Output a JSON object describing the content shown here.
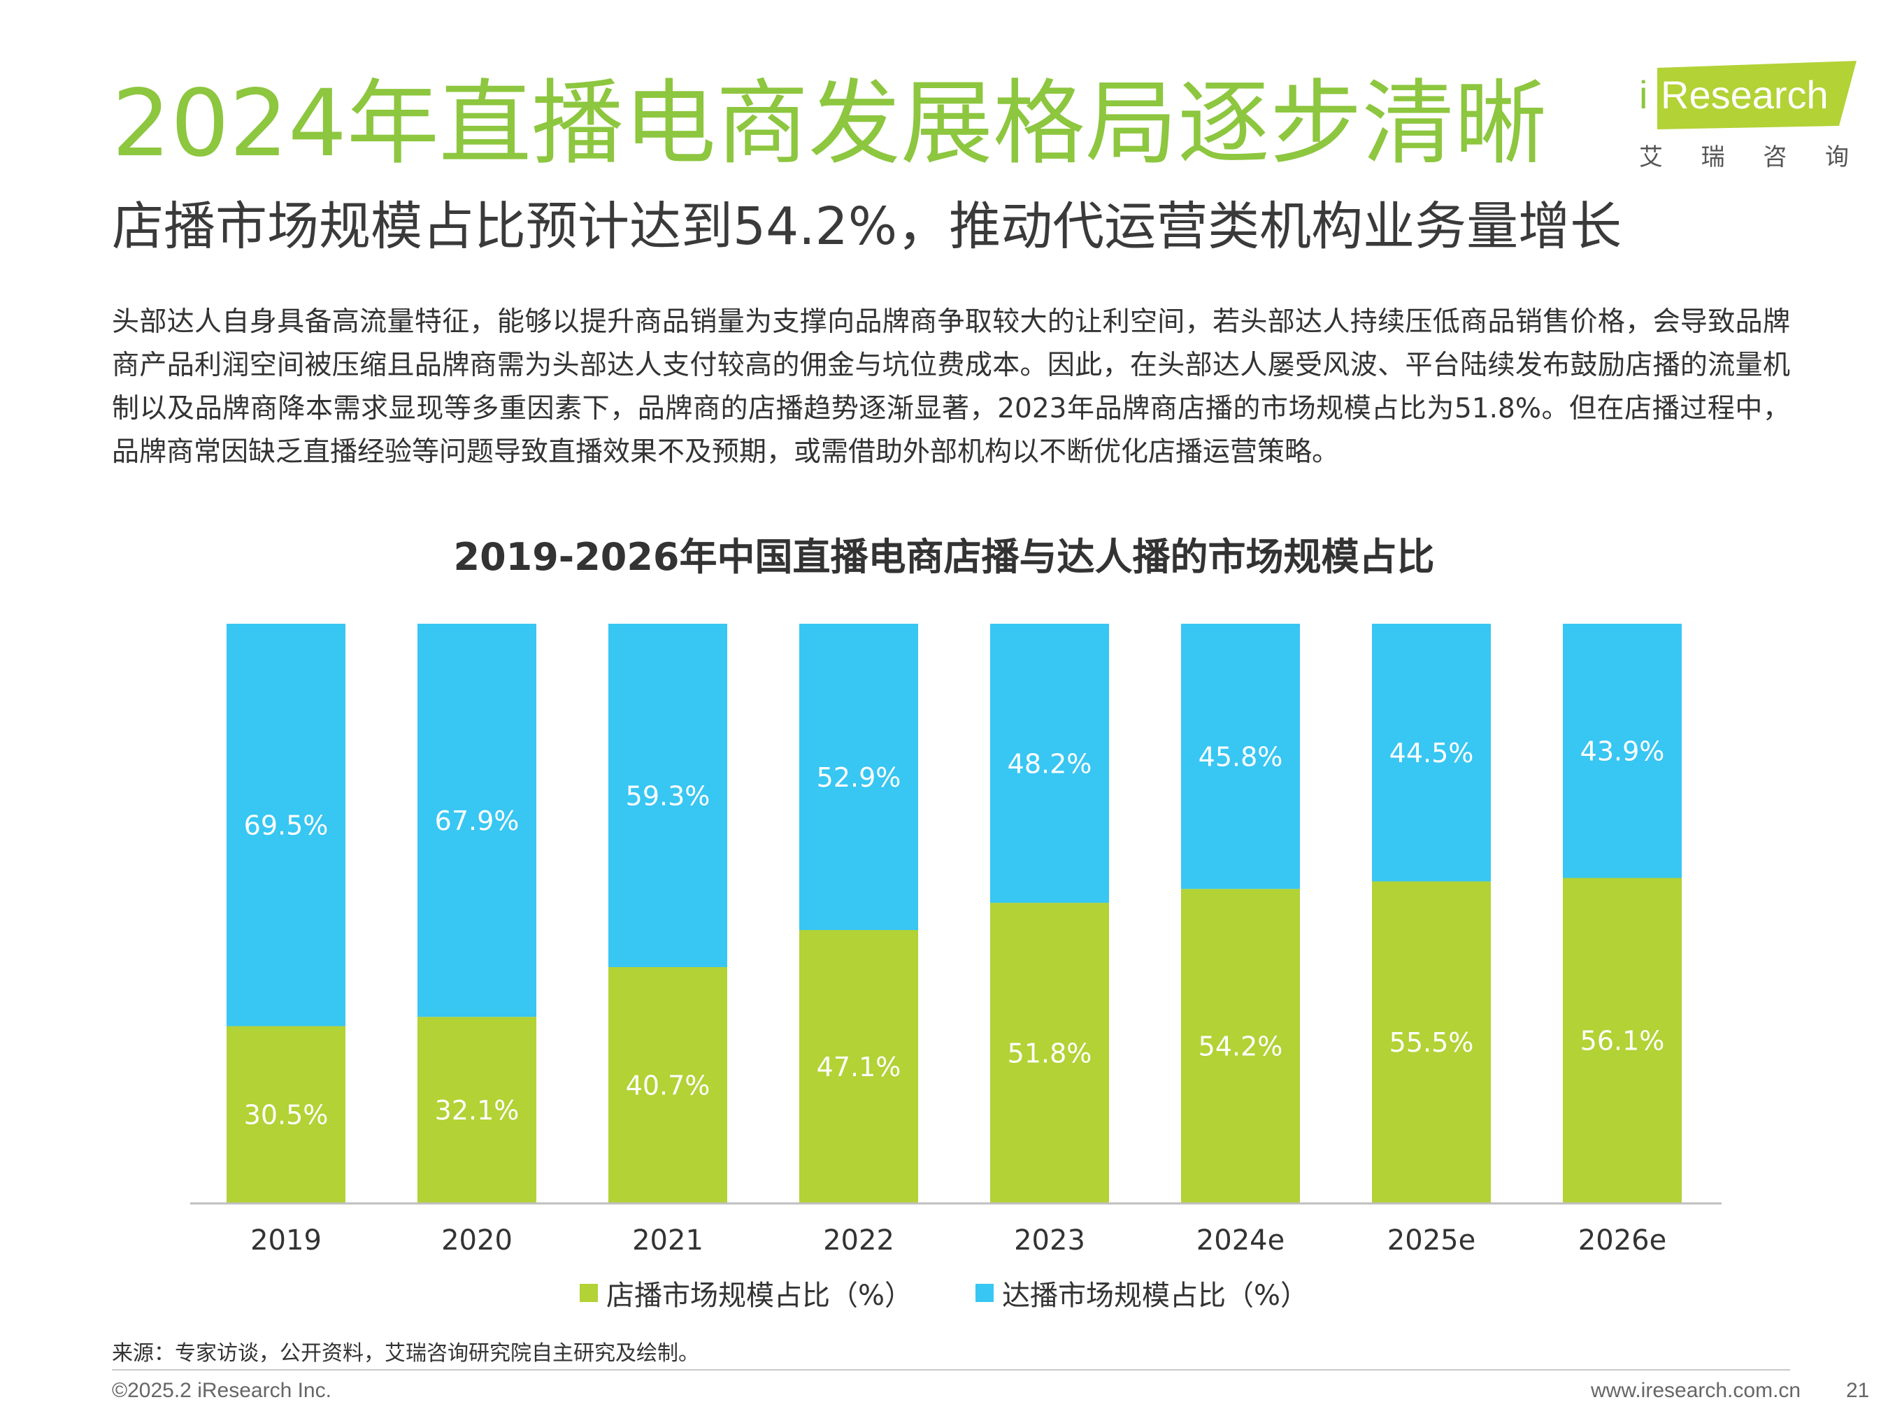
{
  "page": {
    "title": "2024年直播电商发展格局逐步清晰",
    "subtitle": "店播市场规模占比预计达到54.2%，推动代运营类机构业务量增长",
    "body": "头部达人自身具备高流量特征，能够以提升商品销量为支撑向品牌商争取较大的让利空间，若头部达人持续压低商品销售价格，会导致品牌商产品利润空间被压缩且品牌商需为头部达人支付较高的佣金与坑位费成本。因此，在头部达人屡受风波、平台陆续发布鼓励店播的流量机制以及品牌商降本需求显现等多重因素下，品牌商的店播趋势逐渐显著，2023年品牌商店播的市场规模占比为51.8%。但在店播过程中，品牌商常因缺乏直播经验等问题导致直播效果不及预期，或需借助外部机构以不断优化店播运营策略。",
    "source": "来源：专家访谈，公开资料，艾瑞咨询研究院自主研究及绘制。",
    "footer_left": "©2025.2 iResearch Inc.",
    "footer_right": "www.iresearch.com.cn",
    "page_number": "21"
  },
  "logo": {
    "brand_i": "i",
    "brand_rest": "Research",
    "cn_chars": [
      "艾",
      "瑞",
      "咨",
      "询"
    ]
  },
  "colors": {
    "title_green": "#8dc63f",
    "store": "#b2d235",
    "influencer": "#38c6f2"
  },
  "chart_data": {
    "type": "bar",
    "stacked": true,
    "title": "2019-2026年中国直播电商店播与达人播的市场规模占比",
    "categories": [
      "2019",
      "2020",
      "2021",
      "2022",
      "2023",
      "2024e",
      "2025e",
      "2026e"
    ],
    "series": [
      {
        "name": "店播市场规模占比（%）",
        "values": [
          30.5,
          32.1,
          40.7,
          47.1,
          51.8,
          54.2,
          55.5,
          56.1
        ],
        "labels": [
          "30.5%",
          "32.1%",
          "40.7%",
          "47.1%",
          "51.8%",
          "54.2%",
          "55.5%",
          "56.1%"
        ]
      },
      {
        "name": "达播市场规模占比（%）",
        "values": [
          69.5,
          67.9,
          59.3,
          52.9,
          48.2,
          45.8,
          44.5,
          43.9
        ],
        "labels": [
          "69.5%",
          "67.9%",
          "59.3%",
          "52.9%",
          "48.2%",
          "45.8%",
          "44.5%",
          "43.9%"
        ]
      }
    ],
    "ylim": [
      0,
      100
    ],
    "grid": false,
    "legend_position": "bottom"
  }
}
